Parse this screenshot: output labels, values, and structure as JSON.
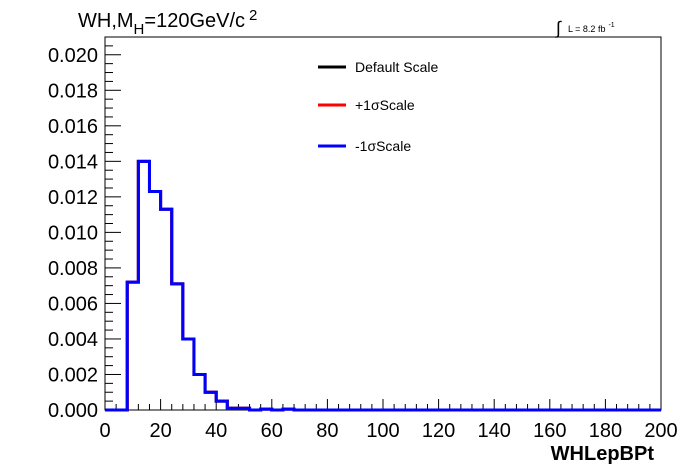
{
  "chart_data": {
    "type": "line",
    "title_main": "WH,M",
    "title_sub": "H",
    "title_rest": "=120GeV/c",
    "title_sup": "2",
    "lumi_label": "L = 8.2 fb",
    "lumi_sup": "-1",
    "lumi_integral": "∫",
    "xlabel": "WHLepBPt",
    "ylabel": "",
    "xlim": [
      0,
      200
    ],
    "ylim": [
      0,
      0.021
    ],
    "x_ticks": [
      "0",
      "20",
      "40",
      "60",
      "80",
      "100",
      "120",
      "140",
      "160",
      "180",
      "200"
    ],
    "y_ticks": [
      "0.000",
      "0.002",
      "0.004",
      "0.006",
      "0.008",
      "0.010",
      "0.012",
      "0.014",
      "0.016",
      "0.018",
      "0.020"
    ],
    "bin_width": 4,
    "bin_edges_start": 0,
    "legend_position": "top-center",
    "series": [
      {
        "name": "Default Scale",
        "color": "#000000",
        "values": [
          0,
          0,
          0.0072,
          0.014,
          0.0123,
          0.0113,
          0.0071,
          0.004,
          0.002,
          0.001,
          0.0005,
          0.0001,
          0.0001,
          0,
          5e-05,
          0,
          5e-05,
          0,
          0,
          0,
          0,
          0,
          0,
          0,
          0,
          0,
          0,
          0,
          0,
          0,
          0,
          0,
          0,
          0,
          0,
          0,
          0,
          0,
          0,
          0,
          0,
          0,
          0,
          0,
          0,
          0,
          0,
          0,
          0,
          0
        ]
      },
      {
        "name": "+1σScale",
        "color": "#ff0000",
        "values": [
          0,
          0,
          0.0072,
          0.014,
          0.0123,
          0.0113,
          0.0071,
          0.004,
          0.002,
          0.001,
          0.0005,
          0.0001,
          0.0001,
          0,
          5e-05,
          0,
          5e-05,
          0,
          0,
          0,
          0,
          0,
          0,
          0,
          0,
          0,
          0,
          0,
          0,
          0,
          0,
          0,
          0,
          0,
          0,
          0,
          0,
          0,
          0,
          0,
          0,
          0,
          0,
          0,
          0,
          0,
          0,
          0,
          0,
          0
        ]
      },
      {
        "name": "-1σScale",
        "color": "#0000ff",
        "values": [
          0,
          0,
          0.0072,
          0.014,
          0.0123,
          0.0113,
          0.0071,
          0.004,
          0.002,
          0.001,
          0.0005,
          0.0001,
          0.0001,
          0,
          5e-05,
          0,
          5e-05,
          0,
          0,
          0,
          0,
          0,
          0,
          0,
          0,
          0,
          0,
          0,
          0,
          0,
          0,
          0,
          0,
          0,
          0,
          0,
          0,
          0,
          0,
          0,
          0,
          0,
          0,
          0,
          0,
          0,
          0,
          0,
          0,
          0
        ]
      }
    ]
  }
}
